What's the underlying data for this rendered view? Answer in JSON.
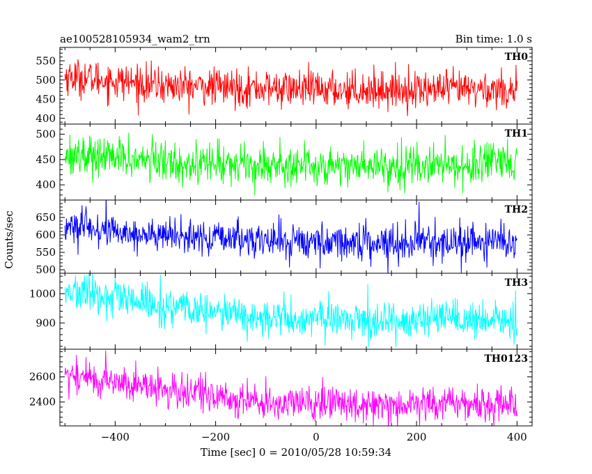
{
  "header": {
    "left_title": "ae100528105934_wam2_trn",
    "right_title": "Bin time: 1.0 s"
  },
  "chart_data": {
    "type": "line",
    "title": "ae100528105934_wam2_trn",
    "subtitle": "Bin time: 1.0 s",
    "xlabel": "Time [sec] 0 = 2010/05/28 10:59:34",
    "ylabel": "Counts/sec",
    "xlim": [
      -510,
      430
    ],
    "x_start": -500,
    "x_end": 400,
    "x_step": 1,
    "x_ticks": [
      -400,
      -200,
      0,
      200,
      400
    ],
    "x_tick_labels": [
      "−400",
      "−200",
      "0",
      "200",
      "400"
    ],
    "grid": false,
    "panels": [
      {
        "name": "TH0",
        "color": "#ff0000",
        "ylim": [
          385,
          585
        ],
        "y_ticks": [
          400,
          450,
          500,
          550
        ],
        "y_tick_labels": [
          "400",
          "450",
          "500",
          "550"
        ],
        "trend": [
          {
            "x": -500,
            "y": 510
          },
          {
            "x": -300,
            "y": 485
          },
          {
            "x": 0,
            "y": 475
          },
          {
            "x": 400,
            "y": 475
          }
        ],
        "noise_sd": 24,
        "spikes": []
      },
      {
        "name": "TH1",
        "color": "#00ff00",
        "ylim": [
          370,
          520
        ],
        "y_ticks": [
          400,
          450,
          500
        ],
        "y_tick_labels": [
          "400",
          "450",
          "500"
        ],
        "trend": [
          {
            "x": -500,
            "y": 462
          },
          {
            "x": -300,
            "y": 445
          },
          {
            "x": 0,
            "y": 438
          },
          {
            "x": 400,
            "y": 440
          }
        ],
        "noise_sd": 20,
        "spikes": []
      },
      {
        "name": "TH2",
        "color": "#0000ff",
        "ylim": [
          490,
          700
        ],
        "y_ticks": [
          500,
          550,
          600,
          650
        ],
        "y_tick_labels": [
          "500",
          "550",
          "600",
          "650"
        ],
        "trend": [
          {
            "x": -500,
            "y": 625
          },
          {
            "x": -300,
            "y": 595
          },
          {
            "x": 0,
            "y": 580
          },
          {
            "x": 400,
            "y": 578
          }
        ],
        "noise_sd": 25,
        "spikes": [
          {
            "x": 205,
            "y": 695
          }
        ]
      },
      {
        "name": "TH3",
        "color": "#00ffff",
        "ylim": [
          810,
          1070
        ],
        "y_ticks": [
          900,
          1000
        ],
        "y_tick_labels": [
          "900",
          "1000"
        ],
        "trend": [
          {
            "x": -500,
            "y": 1010
          },
          {
            "x": -300,
            "y": 955
          },
          {
            "x": -100,
            "y": 915
          },
          {
            "x": 400,
            "y": 905
          }
        ],
        "noise_sd": 32,
        "spikes": []
      },
      {
        "name": "TH0123",
        "color": "#ff00ff",
        "ylim": [
          2210,
          2820
        ],
        "y_ticks": [
          2400,
          2600
        ],
        "y_tick_labels": [
          "2400",
          "2600"
        ],
        "trend": [
          {
            "x": -500,
            "y": 2620
          },
          {
            "x": -300,
            "y": 2500
          },
          {
            "x": -100,
            "y": 2390
          },
          {
            "x": 400,
            "y": 2385
          }
        ],
        "noise_sd": 70,
        "spikes": []
      }
    ]
  }
}
